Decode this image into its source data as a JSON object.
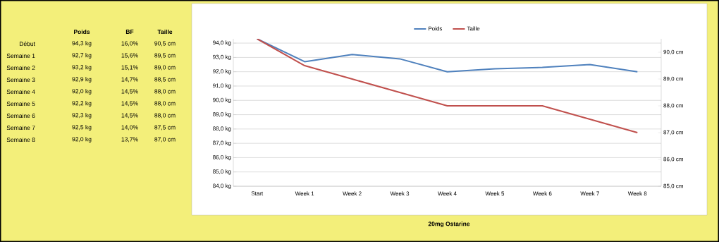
{
  "chart_data": [
    {
      "type": "heatmap",
      "categories": [
        "Poids",
        "BF",
        "Taille"
      ],
      "y_categories": [
        "Début",
        "Semaine 1",
        "Semaine 2",
        "Semaine 3",
        "Semaine 4",
        "Semaine 5",
        "Semaine 6",
        "Semaine 7",
        "Semaine 8"
      ],
      "cells": [
        [
          null,
          null,
          null
        ],
        [
          null,
          null,
          null
        ],
        [
          null,
          null,
          null
        ],
        [
          null,
          null,
          null
        ],
        [
          null,
          null,
          null
        ],
        [
          null,
          null,
          null
        ],
        [
          null,
          null,
          null
        ],
        [
          null,
          null,
          null
        ],
        [
          null,
          null,
          null
        ]
      ],
      "cell_labels": [
        [
          "94,3 kg",
          "16,0%",
          "90,5 cm"
        ],
        [
          "92,7 kg",
          "15,6%",
          "89,5 cm"
        ],
        [
          "93,2 kg",
          "15,1%",
          "89,0 cm"
        ],
        [
          "92,9 kg",
          "14,7%",
          "88,5 cm"
        ],
        [
          "92,0 kg",
          "14,5%",
          "88,0 cm"
        ],
        [
          "92,2 kg",
          "14,5%",
          "88,0 cm"
        ],
        [
          "92,3 kg",
          "14,5%",
          "88,0 cm"
        ],
        [
          "92,5 kg",
          "14,0%",
          "87,5 cm"
        ],
        [
          "92,0 kg",
          "13,7%",
          "87,0 cm"
        ]
      ]
    },
    {
      "type": "line",
      "title": "20mg Ostarine",
      "categories": [
        "Start",
        "Week 1",
        "Week 2",
        "Week 3",
        "Week 4",
        "Week 5",
        "Week 6",
        "Week 7",
        "Week 8"
      ],
      "series": [
        {
          "name": "Poids",
          "color": "#4f81bd",
          "values": [
            94.3,
            92.7,
            93.2,
            92.9,
            92.0,
            92.2,
            92.3,
            92.5,
            92.0
          ]
        },
        {
          "name": "Taille",
          "color": "#c0504d",
          "axis": "y2",
          "values": [
            90.5,
            89.5,
            89.0,
            88.5,
            88.0,
            88.0,
            88.0,
            87.5,
            87.0
          ]
        }
      ],
      "ylim": [
        84,
        94.3
      ],
      "yticks": [
        {
          "value": 84,
          "label": "84,0 kg"
        },
        {
          "value": 85,
          "label": "85,0 kg"
        },
        {
          "value": 86,
          "label": "86,0 kg"
        },
        {
          "value": 87,
          "label": "87,0 kg"
        },
        {
          "value": 88,
          "label": "88,0 kg"
        },
        {
          "value": 89,
          "label": "89,0 kg"
        },
        {
          "value": 90,
          "label": "90,0 kg"
        },
        {
          "value": 91,
          "label": "91,0 kg"
        },
        {
          "value": 92,
          "label": "92,0 kg"
        },
        {
          "value": 93,
          "label": "93,0 kg"
        },
        {
          "value": 94,
          "label": "94,0 kg"
        }
      ],
      "y2lim": [
        85,
        90.5
      ],
      "y2ticks": [
        {
          "value": 85,
          "label": "85,0 cm"
        },
        {
          "value": 86,
          "label": "86,0 cm"
        },
        {
          "value": 87,
          "label": "87,0 cm"
        },
        {
          "value": 88,
          "label": "88,0 cm"
        },
        {
          "value": 89,
          "label": "89,0 cm"
        },
        {
          "value": 90,
          "label": "90,0 cm"
        }
      ],
      "grid": "y",
      "legend": "top",
      "marker": "none",
      "line_style": "solid"
    }
  ]
}
